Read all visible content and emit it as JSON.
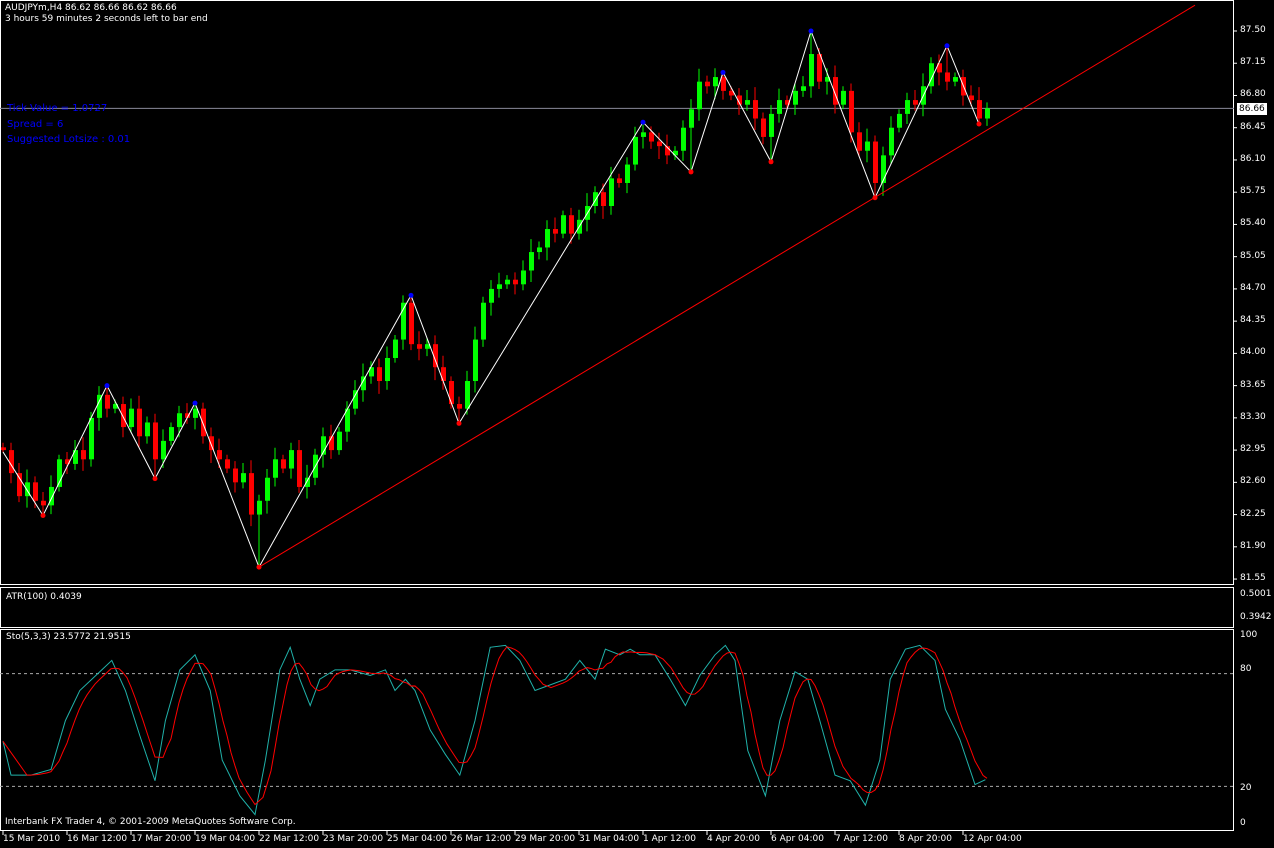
{
  "header": {
    "symbol_line": "AUDJPYm,H4  86.62 86.66 86.62 86.66",
    "timer": "3 hours 59 minutes 2 seconds left to bar end"
  },
  "info": {
    "tick_value": "Tick Value = 1.0727",
    "spread": "Spread = 6",
    "lotsize": "Suggested Lotsize : 0.01"
  },
  "current_price": "86.66",
  "colors": {
    "bull": "#00ff00",
    "bear": "#ff0000",
    "zigzag": "#ffffff",
    "pivot_high": "#0000ff",
    "pivot_low": "#ff0000",
    "trendline": "#ff0000",
    "stoch_main": "#20b2aa",
    "stoch_signal": "#ff0000",
    "info_text": "#0000ff"
  },
  "price_axis": [
    "87.50",
    "87.15",
    "86.80",
    "86.45",
    "86.10",
    "85.75",
    "85.40",
    "85.05",
    "84.70",
    "84.35",
    "84.00",
    "83.65",
    "83.30",
    "82.95",
    "82.60",
    "82.25",
    "81.90",
    "81.55"
  ],
  "time_axis": [
    "15 Mar 2010",
    "16 Mar 12:00",
    "17 Mar 20:00",
    "19 Mar 04:00",
    "22 Mar 12:00",
    "23 Mar 20:00",
    "25 Mar 04:00",
    "26 Mar 12:00",
    "29 Mar 20:00",
    "31 Mar 04:00",
    "1 Apr 12:00",
    "4 Apr 20:00",
    "6 Apr 04:00",
    "7 Apr 12:00",
    "8 Apr 20:00",
    "12 Apr 04:00"
  ],
  "atr": {
    "label": "ATR(100) 0.4039",
    "axis": [
      "0.5001",
      "0.3942"
    ]
  },
  "stoch": {
    "label": "Sto(5,3,3) 23.5772 21.9515",
    "axis": [
      "100",
      "80",
      "20",
      "0"
    ],
    "levels": [
      80,
      20
    ]
  },
  "footer": "Interbank FX Trader 4, © 2001-2009 MetaQuotes Software Corp.",
  "chart_data": {
    "type": "candlestick",
    "symbol": "AUDJPYm",
    "timeframe": "H4",
    "ylim": [
      81.55,
      87.5
    ],
    "closes": [
      82.95,
      82.7,
      82.45,
      82.6,
      82.4,
      82.35,
      82.55,
      82.85,
      82.8,
      82.95,
      82.85,
      83.3,
      83.55,
      83.4,
      83.45,
      83.2,
      83.4,
      83.1,
      83.25,
      82.85,
      83.05,
      83.2,
      83.35,
      83.3,
      83.4,
      83.1,
      82.95,
      82.85,
      82.75,
      82.6,
      82.7,
      82.25,
      82.4,
      82.65,
      82.85,
      82.75,
      82.95,
      82.55,
      82.65,
      82.9,
      83.1,
      82.95,
      83.15,
      83.4,
      83.6,
      83.75,
      83.85,
      83.7,
      83.95,
      84.15,
      84.55,
      84.1,
      84.05,
      84.1,
      83.85,
      83.7,
      83.45,
      83.4,
      83.7,
      84.15,
      84.55,
      84.7,
      84.75,
      84.8,
      84.75,
      84.9,
      85.1,
      85.15,
      85.35,
      85.3,
      85.5,
      85.3,
      85.45,
      85.6,
      85.75,
      85.6,
      85.9,
      85.85,
      86.05,
      86.35,
      86.4,
      86.3,
      86.25,
      86.15,
      86.2,
      86.45,
      86.65,
      86.95,
      86.9,
      87.0,
      86.85,
      86.8,
      86.7,
      86.75,
      86.55,
      86.35,
      86.6,
      86.75,
      86.7,
      86.85,
      86.9,
      87.25,
      86.95,
      87.0,
      86.7,
      86.85,
      86.4,
      86.2,
      86.3,
      85.85,
      86.15,
      86.45,
      86.6,
      86.75,
      86.7,
      86.9,
      87.15,
      87.05,
      86.95,
      87.0,
      86.8,
      86.75,
      86.55,
      86.66
    ],
    "zigzag": [
      [
        0,
        82.93
      ],
      [
        5,
        82.24
      ],
      [
        13,
        83.65
      ],
      [
        19,
        82.64
      ],
      [
        24,
        83.46
      ],
      [
        32,
        81.68
      ],
      [
        51,
        84.63
      ],
      [
        57,
        83.24
      ],
      [
        80,
        86.51
      ],
      [
        86,
        85.97
      ],
      [
        90,
        87.05
      ],
      [
        96,
        86.08
      ],
      [
        101,
        87.5
      ],
      [
        109,
        85.69
      ],
      [
        118,
        87.34
      ],
      [
        122,
        86.49
      ]
    ],
    "trendline": [
      [
        32,
        81.68
      ],
      [
        149,
        87.78
      ]
    ],
    "stoch_k": [
      [
        0,
        44
      ],
      [
        1,
        26
      ],
      [
        3.5,
        26
      ],
      [
        6,
        29
      ],
      [
        7.8,
        55
      ],
      [
        9.6,
        71
      ],
      [
        12.1,
        81
      ],
      [
        13.6,
        87
      ],
      [
        15.3,
        71
      ],
      [
        17.1,
        47
      ],
      [
        19,
        23
      ],
      [
        20.3,
        55
      ],
      [
        22.1,
        82
      ],
      [
        24,
        90
      ],
      [
        25.9,
        71
      ],
      [
        27.4,
        34
      ],
      [
        29.6,
        15
      ],
      [
        31.5,
        5
      ],
      [
        32.8,
        34
      ],
      [
        34.6,
        82
      ],
      [
        35.9,
        94
      ],
      [
        37.1,
        77
      ],
      [
        38.4,
        63
      ],
      [
        39.6,
        77
      ],
      [
        41.5,
        82
      ],
      [
        43.4,
        82
      ],
      [
        45.9,
        79
      ],
      [
        47.8,
        82
      ],
      [
        49,
        71
      ],
      [
        50.3,
        77
      ],
      [
        51.5,
        71
      ],
      [
        53.4,
        50
      ],
      [
        55.3,
        37
      ],
      [
        57.1,
        26
      ],
      [
        59,
        55
      ],
      [
        60.9,
        94
      ],
      [
        62.8,
        95
      ],
      [
        64.6,
        87
      ],
      [
        66.5,
        71
      ],
      [
        68.4,
        74
      ],
      [
        70.3,
        77
      ],
      [
        72.1,
        87
      ],
      [
        74,
        77
      ],
      [
        75.3,
        93
      ],
      [
        77.1,
        90
      ],
      [
        78.4,
        93
      ],
      [
        79.6,
        90
      ],
      [
        81.5,
        90
      ],
      [
        83.4,
        77
      ],
      [
        85.3,
        63
      ],
      [
        87.1,
        79
      ],
      [
        89,
        90
      ],
      [
        90.3,
        95
      ],
      [
        91.5,
        87
      ],
      [
        93.1,
        39
      ],
      [
        95.3,
        15
      ],
      [
        97.1,
        55
      ],
      [
        99,
        81
      ],
      [
        100.6,
        77
      ],
      [
        102.1,
        55
      ],
      [
        104,
        26
      ],
      [
        105.9,
        23
      ],
      [
        107.8,
        10
      ],
      [
        109.6,
        34
      ],
      [
        110.9,
        77
      ],
      [
        112.8,
        93
      ],
      [
        114.6,
        95
      ],
      [
        116.5,
        87
      ],
      [
        117.8,
        61
      ],
      [
        119.6,
        45
      ],
      [
        121.5,
        21
      ],
      [
        122.8,
        23.58
      ]
    ]
  }
}
